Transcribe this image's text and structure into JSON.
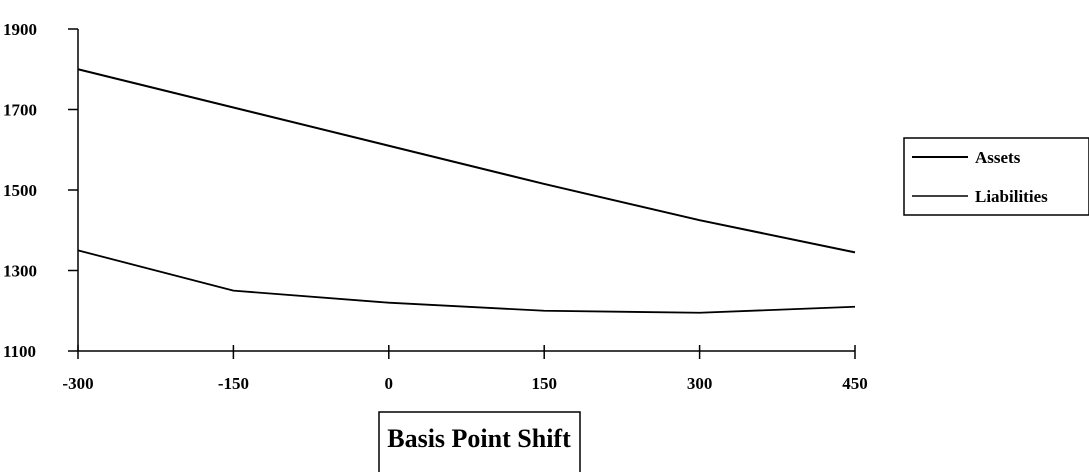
{
  "chart_data": {
    "type": "line",
    "title": "",
    "xlabel": "Basis Point Shift",
    "ylabel": "",
    "categories": [
      "-300",
      "-150",
      "0",
      "150",
      "300",
      "450"
    ],
    "x": [
      -300,
      -150,
      0,
      150,
      300,
      450
    ],
    "ylim": [
      1100,
      1900
    ],
    "yticks": [
      "1100",
      "1300",
      "1500",
      "1700",
      "1900"
    ],
    "grid": false,
    "legend_position": "right",
    "series": [
      {
        "name": "Assets",
        "values": [
          1800,
          1705,
          1610,
          1515,
          1425,
          1345
        ],
        "color": "#000000"
      },
      {
        "name": "Liabilities",
        "values": [
          1350,
          1250,
          1220,
          1200,
          1195,
          1210
        ],
        "color": "#000000"
      }
    ]
  }
}
